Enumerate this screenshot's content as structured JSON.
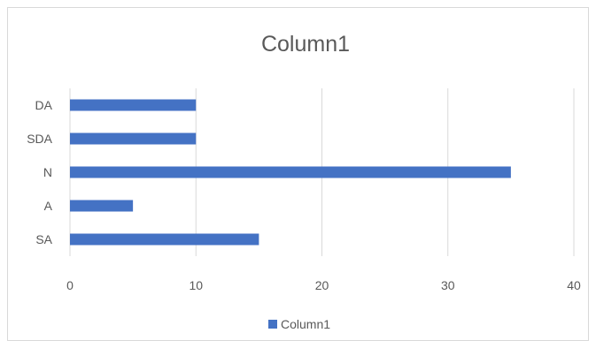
{
  "chart_data": {
    "type": "bar",
    "orientation": "horizontal",
    "title": "Column1",
    "categories": [
      "SA",
      "A",
      "N",
      "SDA",
      "DA"
    ],
    "series": [
      {
        "name": "Column1",
        "values": [
          15,
          5,
          35,
          10,
          10
        ],
        "color": "#4472c4"
      }
    ],
    "xlim": [
      0,
      40
    ],
    "x_ticks": [
      "0",
      "10",
      "20",
      "30",
      "40"
    ],
    "grid": "vertical",
    "legend": "bottom"
  }
}
